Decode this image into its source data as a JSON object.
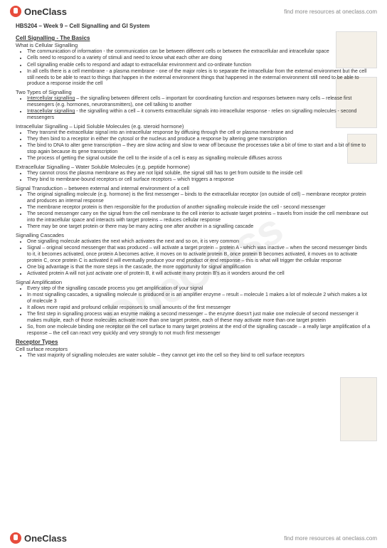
{
  "brand": {
    "name": "OneClass",
    "tagline": "find more resources at oneclass.com"
  },
  "course": "HBS204 – Week 9 – Cell Signalling and GI System",
  "s1": {
    "title": "Cell Signalling - The Basics",
    "sub": "What is Cellular Signalling",
    "items": [
      "The communication of information - the communication can be between different cells or between the extracellular and intracellular space",
      "Cells need to respond to a variety of stimuli and need to know what each other are doing",
      "Cell signalling enable cells to respond and adapt to extracellular environment and co-ordinate function",
      "In all cells there is a cell membrane - a plasma membrane - one of the major roles is to separate the intracellular from the external environment but the cell still needs to be able to react to things that happen in the external environment things that happened in the external environment still need to be able to produce a response inside the cell"
    ]
  },
  "s2": {
    "title": "Two Types of Signalling",
    "inter_label": "Intercellular signalling",
    "inter_text": " – the signalling between different cells – important for coordinating function and responses between many cells – release first messengers (e.g. hormones, neurotransmitters), one cell talking to another",
    "intra_label": "Intracellular signalling",
    "intra_text": " - the signalling within a cell – it converts extracellular signals into intracellular response - relies on signalling molecules - second messengers"
  },
  "s3": {
    "title": "Intracellular Signalling – Lipid Soluble Molecules (e.g. steroid hormone)",
    "items": [
      "They transmit the extracellular signal into an intracellular response by diffusing through the cell or plasma membrane and",
      "They then bind to a receptor in either the cytosol or the nucleus and produce a response by altering gene transcription",
      "The bind to DNA to alter gene transcription – they are slow acting and slow to wear off because the processes take a bit of time to start and a bit of time to stop again because its gene transcription",
      "The process of getting the signal outside the cell to the inside of a cell is easy as signalling molecule diffuses across"
    ]
  },
  "s4": {
    "title": "Extracellular Signalling – Water Soluble Molecules (e.g. peptide hormone)",
    "items": [
      "They cannot cross the plasma membrane as they are not lipid soluble, the signal still has to get from outside to the inside cell",
      "They bind to membrane-bound receptors or cell surface receptors – which triggers a response"
    ]
  },
  "s5": {
    "title": "Signal Transduction – between external and internal environment of a cell",
    "items": [
      "The original signalling molecule (e.g. hormone) is the first messenger – binds to the extracellular receptor (on outside of cell) – membrane receptor protein and produces an internal response",
      "The membrane receptor protein is then responsible for the production of another signalling molecule inside the cell - second messenger",
      "The second messenger carry on the signal from the cell membrane to the cell interior to activate target proteins – travels from inside the cell membrane out into the intracellular space and interacts with target proteins – reduces cellular response",
      "There may be one target protein or there may be many acting one after another in a signalling cascade"
    ]
  },
  "s6": {
    "title": "Signalling Cascades",
    "items": [
      "One signalling molecule activates the next which activates the next and so on, it is very common",
      "Signal – original second messenger that was produced – will activate a target protein – protein A - which was inactive – when the second messenger binds to it, it becomes activated, once protein A becomes active, it moves on to activate protein B, once protein B becomes activated, it moves on to activate protein C, once protein C is activated it will eventually produce your end product or end response – this is what will trigger the cellular response",
      "One big advantage is that the more steps in the cascade, the more opportunity for signal amplification",
      "Activated protein A will not just activate one of protein B, it will activate many protein B's as it wonders around the cell"
    ]
  },
  "s7": {
    "title": "Signal Amplification",
    "items": [
      "Every step of the signalling cascade process you get amplification of your signal",
      "In most signalling cascades, a signalling molecule is produced or is an amplifier enzyme – result – molecule 1 makes a lot of molecule 2 which makes a lot of molecule 3",
      "It allows more rapid and profound cellular responses to small amounts of the first messenger",
      "The first step in signalling process was an enzyme making a second messenger – the enzyme doesn't just make one molecule of second messenger it makes multiple, each of those molecules activate more than one target protein, each of these may activate more than one target protein",
      "So, from one molecule binding one receptor on the cell surface to many target proteins at the end of the signalling cascade – a really large amplification of a response – the cell can react very quickly and very strongly to not much first messenger"
    ]
  },
  "s8": {
    "title": "Receptor Types",
    "sub": "Cell surface receptors",
    "items": [
      "The vast majority of signalling molecules are water soluble – they cannot get into the cell so they bind to cell surface receptors"
    ]
  },
  "colors": {
    "accent": "#e74c3c",
    "text": "#333333",
    "muted": "#888888",
    "bg": "#ffffff"
  }
}
